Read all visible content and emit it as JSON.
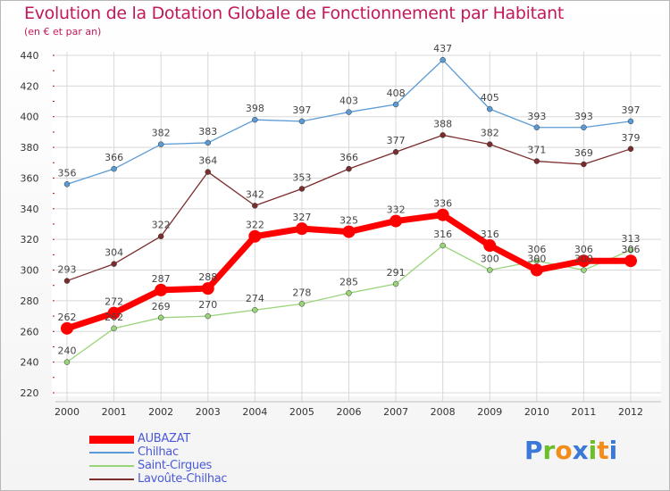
{
  "title": "Evolution de la Dotation Globale de Fonctionnement par Habitant",
  "subtitle": "(en € et par an)",
  "logo": {
    "letters": [
      {
        "ch": "P",
        "color": "#3b78d8"
      },
      {
        "ch": "r",
        "color": "#6cbf2a"
      },
      {
        "ch": "o",
        "color": "#f28c1a"
      },
      {
        "ch": "x",
        "color": "#3b78d8"
      },
      {
        "ch": "i",
        "color": "#6cbf2a"
      },
      {
        "ch": "t",
        "color": "#f28c1a"
      },
      {
        "ch": "i",
        "color": "#3b78d8"
      }
    ]
  },
  "chart_data": {
    "type": "line",
    "title": "Evolution de la Dotation Globale de Fonctionnement par Habitant",
    "subtitle": "(en € et par an)",
    "categories": [
      "2000",
      "2001",
      "2002",
      "2003",
      "2004",
      "2005",
      "2006",
      "2007",
      "2008",
      "2009",
      "2010",
      "2011",
      "2012"
    ],
    "ylim": [
      220,
      440
    ],
    "yticks": [
      220,
      240,
      260,
      280,
      300,
      320,
      340,
      360,
      380,
      400,
      420,
      440
    ],
    "grid": true,
    "legend_position": "bottom-left",
    "series": [
      {
        "name": "Chilhac",
        "color": "#5b9bd5",
        "values": [
          356,
          366,
          382,
          383,
          398,
          397,
          403,
          408,
          437,
          405,
          393,
          393,
          397
        ]
      },
      {
        "name": "Lavoûte-Chilhac",
        "color": "#7b2c2c",
        "values": [
          293,
          304,
          322,
          364,
          342,
          353,
          366,
          377,
          388,
          382,
          371,
          369,
          379
        ]
      },
      {
        "name": "Saint-Cirgues",
        "color": "#9ad47a",
        "values": [
          240,
          262,
          269,
          270,
          274,
          278,
          285,
          291,
          316,
          300,
          306,
          300,
          313
        ]
      },
      {
        "name": "AUBAZAT",
        "color": "#ff0000",
        "values": [
          262,
          272,
          287,
          288,
          322,
          327,
          325,
          332,
          336,
          316,
          300,
          306,
          306
        ]
      }
    ],
    "legend_order": [
      "AUBAZAT",
      "Chilhac",
      "Saint-Cirgues",
      "Lavoûte-Chilhac"
    ]
  }
}
